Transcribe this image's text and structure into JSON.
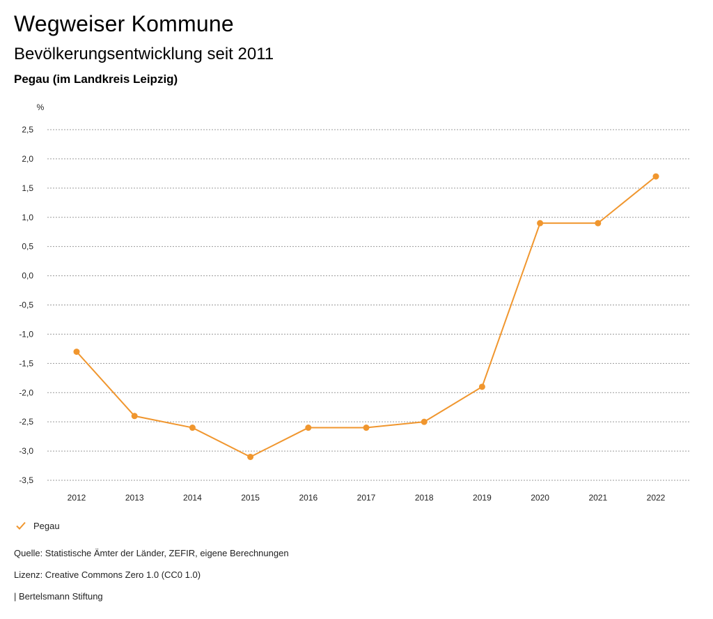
{
  "header": {
    "title": "Wegweiser Kommune",
    "subtitle": "Bevölkerungsentwicklung seit 2011",
    "region": "Pegau (im Landkreis Leipzig)"
  },
  "chart_data": {
    "type": "line",
    "ylabel": "%",
    "x": [
      "2012",
      "2013",
      "2014",
      "2015",
      "2016",
      "2017",
      "2018",
      "2019",
      "2020",
      "2021",
      "2022"
    ],
    "series": [
      {
        "name": "Pegau",
        "color": "#f0962e",
        "values": [
          -1.3,
          -2.4,
          -2.6,
          -3.1,
          -2.6,
          -2.6,
          -2.5,
          -1.9,
          0.9,
          0.9,
          1.7
        ]
      }
    ],
    "ylim": [
      -3.5,
      2.5
    ],
    "yticks": [
      {
        "value": 2.5,
        "label": "2,5"
      },
      {
        "value": 2.0,
        "label": "2,0"
      },
      {
        "value": 1.5,
        "label": "1,5"
      },
      {
        "value": 1.0,
        "label": "1,0"
      },
      {
        "value": 0.5,
        "label": "0,5"
      },
      {
        "value": 0.0,
        "label": "0,0"
      },
      {
        "value": -0.5,
        "label": "-0,5"
      },
      {
        "value": -1.0,
        "label": "-1,0"
      },
      {
        "value": -1.5,
        "label": "-1,5"
      },
      {
        "value": -2.0,
        "label": "-2,0"
      },
      {
        "value": -2.5,
        "label": "-2,5"
      },
      {
        "value": -3.0,
        "label": "-3,0"
      },
      {
        "value": -3.5,
        "label": "-3,5"
      }
    ],
    "grid": true,
    "legend_position": "bottom-left"
  },
  "legend": {
    "label": "Pegau",
    "icon": "check-icon"
  },
  "footer": {
    "source": "Quelle: Statistische Ämter der Länder, ZEFIR, eigene Berechnungen",
    "license": "Lizenz: Creative Commons Zero 1.0 (CC0 1.0)",
    "publisher": "| Bertelsmann Stiftung"
  }
}
